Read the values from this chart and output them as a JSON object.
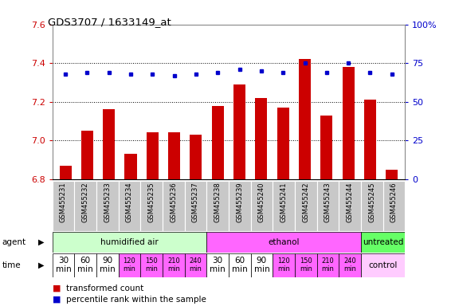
{
  "title": "GDS3707 / 1633149_at",
  "samples": [
    "GSM455231",
    "GSM455232",
    "GSM455233",
    "GSM455234",
    "GSM455235",
    "GSM455236",
    "GSM455237",
    "GSM455238",
    "GSM455239",
    "GSM455240",
    "GSM455241",
    "GSM455242",
    "GSM455243",
    "GSM455244",
    "GSM455245",
    "GSM455246"
  ],
  "bar_values": [
    6.87,
    7.05,
    7.16,
    6.93,
    7.04,
    7.04,
    7.03,
    7.18,
    7.29,
    7.22,
    7.17,
    7.42,
    7.13,
    7.38,
    7.21,
    6.85
  ],
  "percentile_values": [
    68,
    69,
    69,
    68,
    68,
    67,
    68,
    69,
    71,
    70,
    69,
    75,
    69,
    75,
    69,
    68
  ],
  "ylim": [
    6.8,
    7.6
  ],
  "y2lim": [
    0,
    100
  ],
  "yticks": [
    6.8,
    7.0,
    7.2,
    7.4,
    7.6
  ],
  "y2ticks": [
    0,
    25,
    50,
    75,
    100
  ],
  "bar_color": "#cc0000",
  "dot_color": "#0000cc",
  "background_color": "#ffffff",
  "plot_bg_color": "#ffffff",
  "agent_groups": [
    {
      "label": "humidified air",
      "start": 0,
      "end": 7,
      "color": "#ccffcc"
    },
    {
      "label": "ethanol",
      "start": 7,
      "end": 14,
      "color": "#ff66ff"
    },
    {
      "label": "untreated",
      "start": 14,
      "end": 16,
      "color": "#66ff66"
    }
  ],
  "time_labels_14": [
    "30\nmin",
    "60\nmin",
    "90\nmin",
    "120\nmin",
    "150\nmin",
    "210\nmin",
    "240\nmin",
    "30\nmin",
    "60\nmin",
    "90\nmin",
    "120\nmin",
    "150\nmin",
    "210\nmin",
    "240\nmin"
  ],
  "time_colors_14": [
    "#ff66ff",
    "#ff66ff",
    "#ff66ff",
    "#ff66ff",
    "#ff66ff",
    "#ff66ff",
    "#ff66ff",
    "#ff66ff",
    "#ff66ff",
    "#ff66ff",
    "#ff66ff",
    "#ff66ff",
    "#ff66ff",
    "#ff66ff"
  ],
  "time_white_indices": [
    0,
    1,
    2,
    7,
    8,
    9
  ],
  "control_color": "#ffccff",
  "legend_items": [
    {
      "label": "transformed count",
      "color": "#cc0000"
    },
    {
      "label": "percentile rank within the sample",
      "color": "#0000cc"
    }
  ],
  "tick_label_color_left": "#cc0000",
  "tick_label_color_right": "#0000cc",
  "sample_bg_color": "#c8c8c8",
  "sample_border_color": "#ffffff"
}
